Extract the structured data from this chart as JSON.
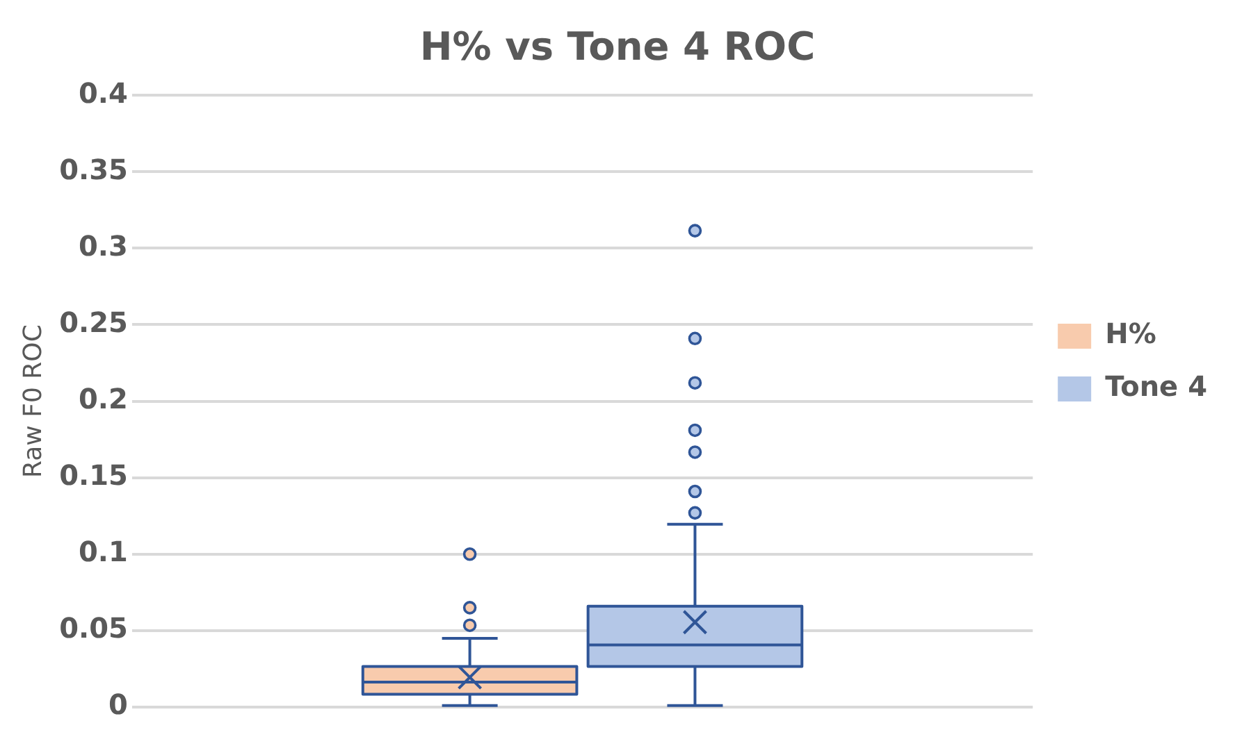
{
  "chart_data": {
    "type": "box",
    "title": "H% vs Tone 4 ROC",
    "ylabel": "Raw F0 ROC",
    "categories": [
      null
    ],
    "series": [
      {
        "name": "H%",
        "color": "#f8cbad",
        "boxes": [
          {
            "low": 0.001,
            "q1": 0.0084,
            "median": 0.0163,
            "q3": 0.0266,
            "high": 0.045,
            "mean": 0.0195,
            "outliers": [
              0.0535,
              0.065,
              0.1
            ]
          }
        ]
      },
      {
        "name": "Tone 4",
        "color": "#b4c7e7",
        "boxes": [
          {
            "low": 0.001,
            "q1": 0.0266,
            "median": 0.0407,
            "q3": 0.066,
            "high": 0.1195,
            "mean": 0.0555,
            "outliers": [
              0.127,
              0.141,
              0.1667,
              0.181,
              0.212,
              0.241,
              0.3115
            ]
          }
        ]
      }
    ],
    "ylim": [
      0,
      0.4
    ],
    "yticks": [
      0,
      0.05,
      0.1,
      0.15,
      0.2,
      0.25,
      0.3,
      0.35,
      0.4
    ],
    "grid": "y",
    "legend": "right",
    "tick_labels": "y"
  }
}
